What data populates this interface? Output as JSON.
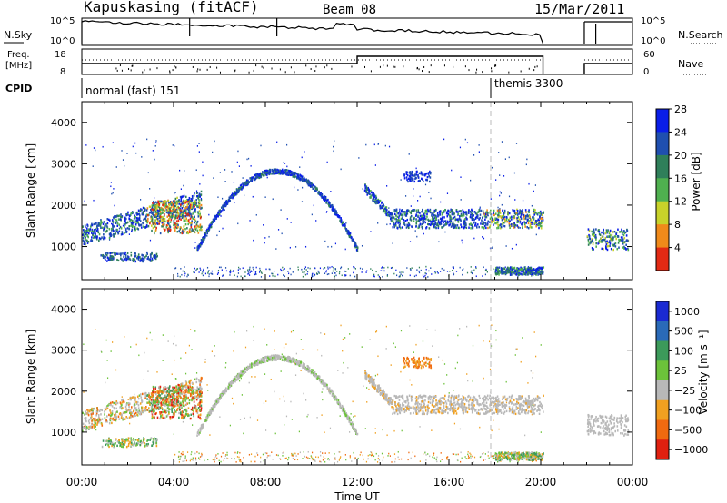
{
  "header": {
    "station": "Kapuskasing (fitACF)",
    "beam": "Beam 08",
    "date": "15/Mar/2011"
  },
  "top_panels": {
    "nsky_label": "N.Sky",
    "nsearch_label": "N.Search",
    "nsky_ticks": [
      "10^5",
      "10^0"
    ],
    "nsearch_ticks": [
      "10^5",
      "10^0"
    ],
    "freq_label_1": "Freq.",
    "freq_label_2": "[MHz]",
    "freq_ticks": [
      "18",
      "8"
    ],
    "nave_label": "Nave",
    "nave_ticks": [
      "60",
      "0"
    ],
    "cpid_label": "CPID",
    "cpid_modes": [
      {
        "name": "normal (fast) 151",
        "start_hour": 0
      },
      {
        "name": "themis 3300",
        "start_hour": 18
      }
    ]
  },
  "chart_data": [
    {
      "type": "heatmap",
      "name": "power-panel",
      "ylabel": "Slant Range [km]",
      "yticks": [
        1000,
        2000,
        3000,
        4000
      ],
      "ylim": [
        200,
        4500
      ],
      "xlabel": "",
      "xticks": [
        "00:00",
        "04:00",
        "08:00",
        "12:00",
        "16:00",
        "20:00",
        "00:00"
      ],
      "xlim": [
        0,
        24
      ],
      "colorbar": {
        "label": "Power [dB]",
        "ticks": [
          "4",
          "8",
          "12",
          "16",
          "20",
          "24",
          "28"
        ],
        "colors": [
          "#0a1ee8",
          "#1f4fb0",
          "#2f7f5a",
          "#4fb04f",
          "#c8d22a",
          "#f08a1a",
          "#e22a14"
        ]
      },
      "data_gaps_hours": [
        [
          20.1,
          21.9
        ]
      ]
    },
    {
      "type": "heatmap",
      "name": "velocity-panel",
      "ylabel": "Slant Range [km]",
      "yticks": [
        1000,
        2000,
        3000,
        4000
      ],
      "ylim": [
        200,
        4500
      ],
      "xlabel": "Time UT",
      "xticks": [
        "00:00",
        "04:00",
        "08:00",
        "12:00",
        "16:00",
        "20:00",
        "00:00"
      ],
      "xlim": [
        0,
        24
      ],
      "colorbar": {
        "label": "Velocity [m s⁻¹]",
        "ticks": [
          "1000",
          "500",
          "100",
          "25",
          "−25",
          "−100",
          "−500",
          "−1000"
        ],
        "colors": [
          "#1a2ad2",
          "#2a6ab8",
          "#3c9a5a",
          "#6cc23a",
          "#b8b8b8",
          "#f0a020",
          "#f06a10",
          "#e02010"
        ]
      },
      "data_gaps_hours": [
        [
          20.1,
          21.9
        ]
      ]
    }
  ]
}
